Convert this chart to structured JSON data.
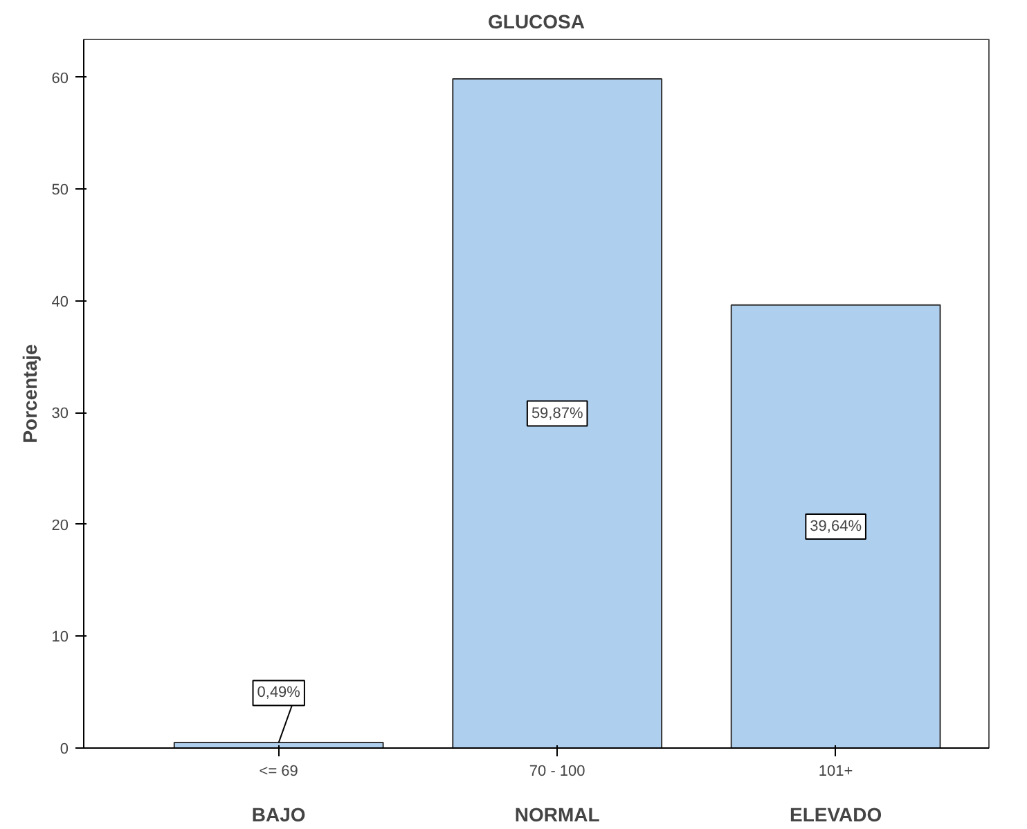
{
  "chart_data": {
    "type": "bar",
    "title": "GLUCOSA",
    "ylabel": "Porcentaje",
    "categories": [
      "<= 69",
      "70 - 100",
      "101+"
    ],
    "values": [
      0.49,
      59.87,
      39.64
    ],
    "value_labels": [
      "0,49%",
      "59,87%",
      "39,64%"
    ],
    "color": "#aecfee",
    "ylim": [
      0,
      63.4
    ],
    "yticks": [
      0,
      10,
      20,
      30,
      40,
      50,
      60
    ],
    "annotations": [
      "BAJO",
      "NORMAL",
      "ELEVADO"
    ],
    "grid": false
  }
}
